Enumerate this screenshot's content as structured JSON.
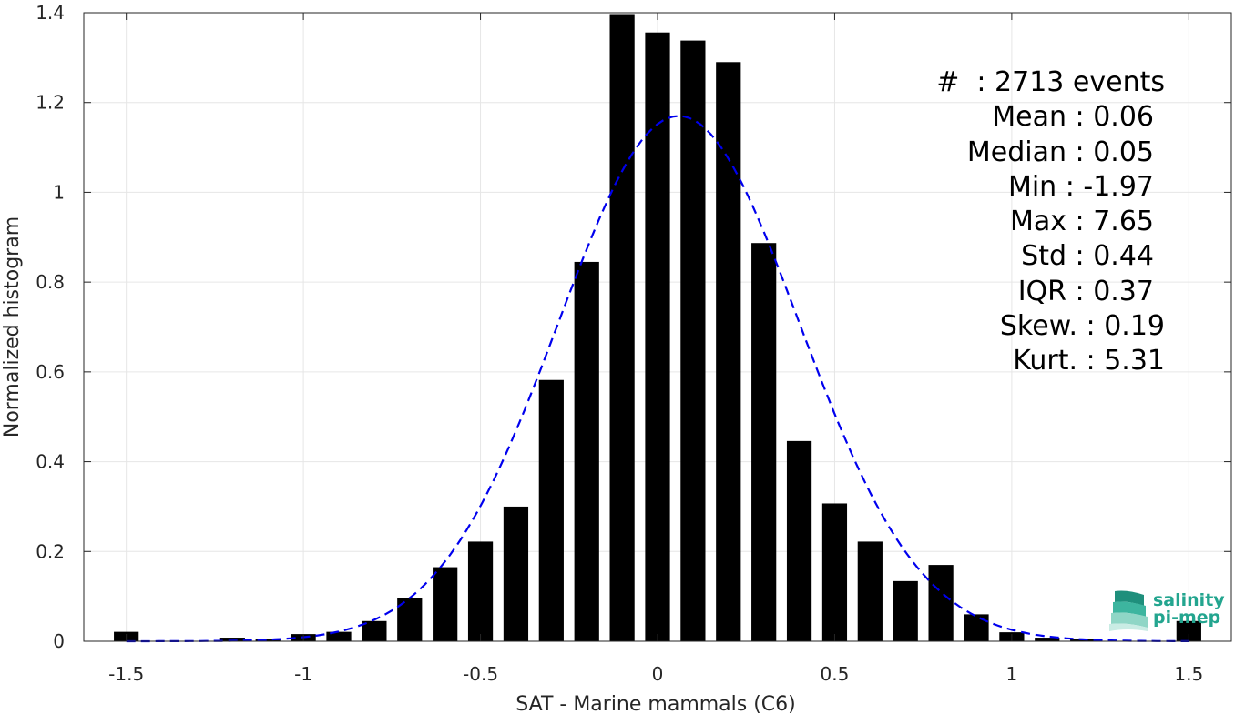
{
  "chart_data": {
    "type": "bar",
    "xlabel": "SAT - Marine mammals (C6)",
    "ylabel": "Normalized histogram",
    "xlim": [
      -1.62,
      1.62
    ],
    "ylim": [
      0,
      1.4
    ],
    "xticks": [
      -1.5,
      -1,
      -0.5,
      0,
      0.5,
      1,
      1.5
    ],
    "xtick_labels": [
      "-1.5",
      "-1",
      "-0.5",
      "0",
      "0.5",
      "1",
      "1.5"
    ],
    "yticks": [
      0,
      0.2,
      0.4,
      0.6,
      0.8,
      1,
      1.2,
      1.4
    ],
    "ytick_labels": [
      "0",
      "0.2",
      "0.4",
      "0.6",
      "0.8",
      "1",
      "1.2",
      "1.4"
    ],
    "grid": true,
    "bin_width": 0.1,
    "bar_color": "#000000",
    "bars": [
      {
        "x": -1.5,
        "y": 0.021
      },
      {
        "x": -1.4,
        "y": 0.0
      },
      {
        "x": -1.3,
        "y": 0.0
      },
      {
        "x": -1.2,
        "y": 0.008
      },
      {
        "x": -1.1,
        "y": 0.004
      },
      {
        "x": -1.0,
        "y": 0.016
      },
      {
        "x": -0.9,
        "y": 0.021
      },
      {
        "x": -0.8,
        "y": 0.045
      },
      {
        "x": -0.7,
        "y": 0.097
      },
      {
        "x": -0.6,
        "y": 0.165
      },
      {
        "x": -0.5,
        "y": 0.222
      },
      {
        "x": -0.4,
        "y": 0.3
      },
      {
        "x": -0.3,
        "y": 0.582
      },
      {
        "x": -0.2,
        "y": 0.845
      },
      {
        "x": -0.1,
        "y": 1.397
      },
      {
        "x": 0.0,
        "y": 1.356
      },
      {
        "x": 0.1,
        "y": 1.338
      },
      {
        "x": 0.2,
        "y": 1.29
      },
      {
        "x": 0.3,
        "y": 0.887
      },
      {
        "x": 0.4,
        "y": 0.446
      },
      {
        "x": 0.5,
        "y": 0.307
      },
      {
        "x": 0.6,
        "y": 0.222
      },
      {
        "x": 0.7,
        "y": 0.134
      },
      {
        "x": 0.8,
        "y": 0.17
      },
      {
        "x": 0.9,
        "y": 0.06
      },
      {
        "x": 1.0,
        "y": 0.02
      },
      {
        "x": 1.1,
        "y": 0.008
      },
      {
        "x": 1.2,
        "y": 0.004
      },
      {
        "x": 1.3,
        "y": 0.0
      },
      {
        "x": 1.4,
        "y": 0.0
      },
      {
        "x": 1.5,
        "y": 0.045
      }
    ],
    "fit_curve": {
      "type": "gaussian",
      "style": "dashed",
      "color": "#0000ee",
      "mean": 0.06,
      "std": 0.34,
      "peak": 1.17,
      "x_range": [
        -1.5,
        1.5
      ]
    },
    "annotation": [
      "#  : 2713 events",
      "Mean : 0.06",
      "Median : 0.05",
      "Min : -1.97",
      "Max : 7.65",
      "Std : 0.44",
      "IQR : 0.37",
      "Skew. : 0.19",
      "Kurt. : 5.31"
    ]
  },
  "logo": {
    "line1": "salinity",
    "line2": "pi-mep",
    "color": "#23a58f"
  }
}
